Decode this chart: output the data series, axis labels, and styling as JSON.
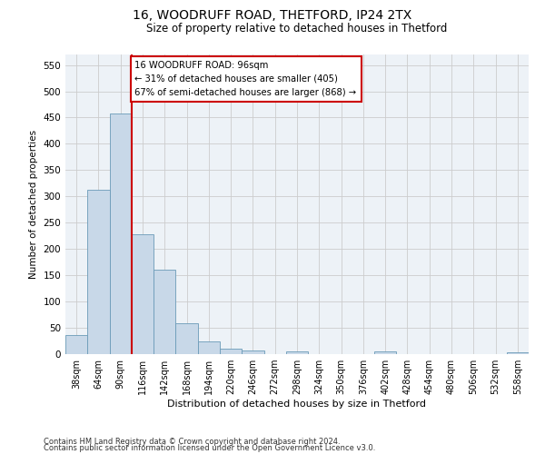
{
  "title1": "16, WOODRUFF ROAD, THETFORD, IP24 2TX",
  "title2": "Size of property relative to detached houses in Thetford",
  "xlabel": "Distribution of detached houses by size in Thetford",
  "ylabel": "Number of detached properties",
  "categories": [
    "38sqm",
    "64sqm",
    "90sqm",
    "116sqm",
    "142sqm",
    "168sqm",
    "194sqm",
    "220sqm",
    "246sqm",
    "272sqm",
    "298sqm",
    "324sqm",
    "350sqm",
    "376sqm",
    "402sqm",
    "428sqm",
    "454sqm",
    "480sqm",
    "506sqm",
    "532sqm",
    "558sqm"
  ],
  "values": [
    37,
    312,
    457,
    228,
    160,
    58,
    24,
    10,
    7,
    0,
    5,
    0,
    0,
    0,
    5,
    0,
    0,
    0,
    0,
    0,
    4
  ],
  "bar_color": "#c8d8e8",
  "bar_edge_color": "#6a9ab8",
  "vline_color": "#cc0000",
  "annotation_text": "16 WOODRUFF ROAD: 96sqm\n← 31% of detached houses are smaller (405)\n67% of semi-detached houses are larger (868) →",
  "annotation_box_color": "#ffffff",
  "annotation_box_edge": "#cc0000",
  "footer1": "Contains HM Land Registry data © Crown copyright and database right 2024.",
  "footer2": "Contains public sector information licensed under the Open Government Licence v3.0.",
  "ylim": [
    0,
    570
  ],
  "yticks": [
    0,
    50,
    100,
    150,
    200,
    250,
    300,
    350,
    400,
    450,
    500,
    550
  ],
  "grid_color": "#cccccc",
  "bg_color": "#edf2f7"
}
